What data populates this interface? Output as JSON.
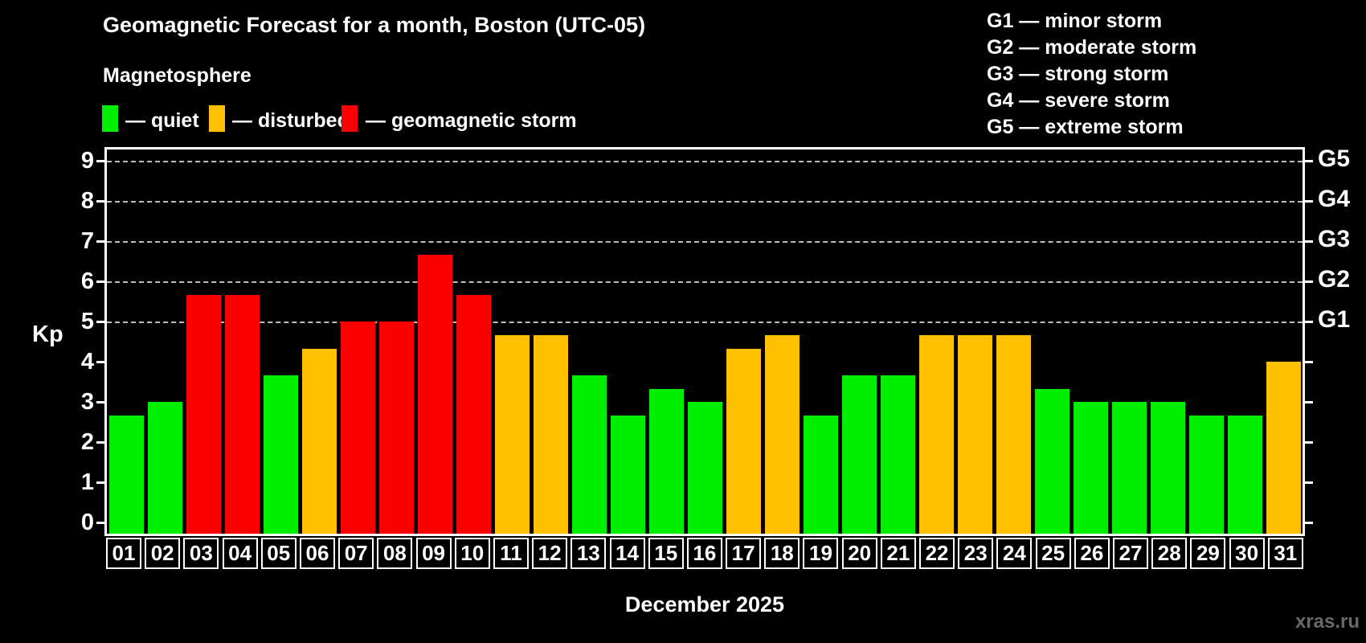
{
  "title": "Geomagnetic Forecast for a month, Boston (UTC-05)",
  "subtitle": "Magnetosphere",
  "legend": {
    "items": [
      {
        "label": "— quiet",
        "status": "quiet"
      },
      {
        "label": "— disturbed",
        "status": "disturbed"
      },
      {
        "label": "— geomagnetic storm",
        "status": "storm"
      }
    ]
  },
  "g_scale_legend": [
    {
      "code": "G1",
      "label": "G1 — minor storm"
    },
    {
      "code": "G2",
      "label": "G2 — moderate storm"
    },
    {
      "code": "G3",
      "label": "G3 — strong storm"
    },
    {
      "code": "G4",
      "label": "G4 — severe storm"
    },
    {
      "code": "G5",
      "label": "G5 — extreme storm"
    }
  ],
  "footer": {
    "month_label": "December 2025",
    "watermark": "xras.ru"
  },
  "chart_data": {
    "type": "bar",
    "title": "Geomagnetic Forecast for a month, Boston (UTC-05)",
    "subtitle": "Magnetosphere",
    "ylabel": "Kp",
    "xlabel": "December 2025",
    "ylim": [
      0,
      9
    ],
    "yticks": [
      0,
      1,
      2,
      3,
      4,
      5,
      6,
      7,
      8,
      9
    ],
    "gridlines_at": [
      5,
      6,
      7,
      8,
      9
    ],
    "grid_style": "horizontal dashed gray lines at Kp 5-9 only",
    "legend_position": "top-left",
    "right_axis_labels": [
      {
        "kp": 5,
        "label": "G1"
      },
      {
        "kp": 6,
        "label": "G2"
      },
      {
        "kp": 7,
        "label": "G3"
      },
      {
        "kp": 8,
        "label": "G4"
      },
      {
        "kp": 9,
        "label": "G5"
      }
    ],
    "categories": [
      "01",
      "02",
      "03",
      "04",
      "05",
      "06",
      "07",
      "08",
      "09",
      "10",
      "11",
      "12",
      "13",
      "14",
      "15",
      "16",
      "17",
      "18",
      "19",
      "20",
      "21",
      "22",
      "23",
      "24",
      "25",
      "26",
      "27",
      "28",
      "29",
      "30",
      "31"
    ],
    "values": [
      2.67,
      3.0,
      5.67,
      5.67,
      3.67,
      4.33,
      5.0,
      5.0,
      6.67,
      5.67,
      4.67,
      4.67,
      3.67,
      2.67,
      3.33,
      3.0,
      4.33,
      4.67,
      2.67,
      3.67,
      3.67,
      4.67,
      4.67,
      4.67,
      3.33,
      3.0,
      3.0,
      3.0,
      2.67,
      2.67,
      4.0
    ],
    "statuses": [
      "quiet",
      "quiet",
      "storm",
      "storm",
      "quiet",
      "disturbed",
      "storm",
      "storm",
      "storm",
      "storm",
      "disturbed",
      "disturbed",
      "quiet",
      "quiet",
      "quiet",
      "quiet",
      "disturbed",
      "disturbed",
      "quiet",
      "quiet",
      "quiet",
      "disturbed",
      "disturbed",
      "disturbed",
      "quiet",
      "quiet",
      "quiet",
      "quiet",
      "quiet",
      "quiet",
      "disturbed"
    ],
    "colors": {
      "quiet": "#00ee00",
      "disturbed": "#ffc000",
      "storm": "#fb0000",
      "background": "#000000",
      "axis": "#ffffff",
      "gridline": "#bdbdbd",
      "watermark": "#696969"
    }
  }
}
